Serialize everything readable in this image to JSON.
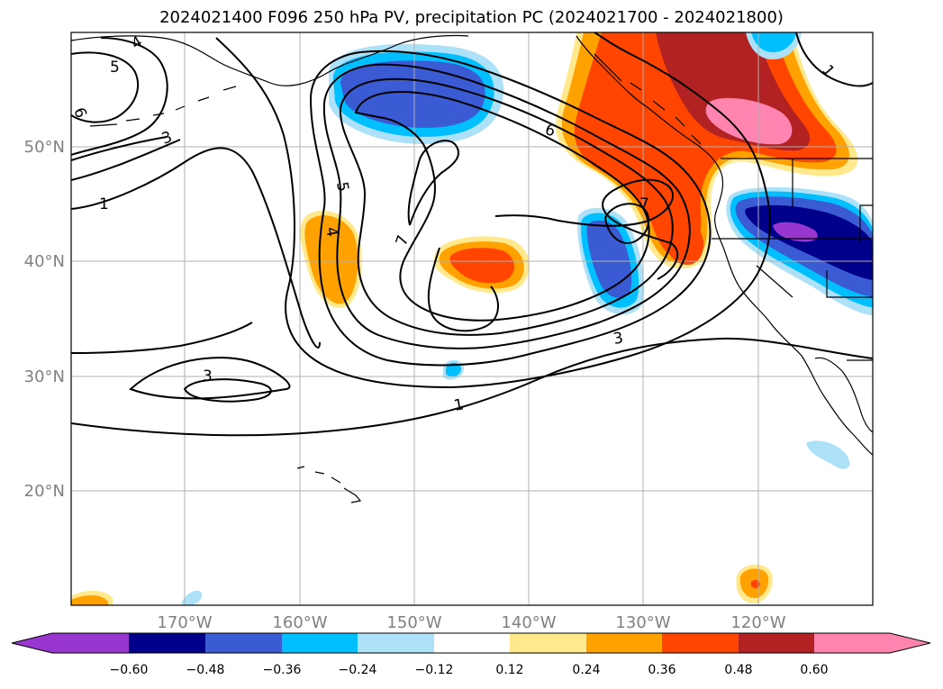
{
  "title": "2024021400 F096 250 hPa PV, precipitation PC (2024021700 - 2024021800)",
  "map": {
    "lat_labels": [
      "50°N",
      "40°N",
      "30°N",
      "20°N"
    ],
    "lon_labels": [
      "170°W",
      "160°W",
      "150°W",
      "140°W",
      "130°W",
      "120°W"
    ]
  },
  "pv_contours": {
    "levels": [
      1,
      2,
      3,
      4,
      5,
      6,
      7
    ],
    "labels": [
      "5",
      "4",
      "6",
      "3",
      "1",
      "5",
      "4",
      "7",
      "6",
      "7",
      "1",
      "3",
      "3",
      "1"
    ]
  },
  "colorbar": {
    "colors": [
      "#9a36d0",
      "#00008b",
      "#3a5bd3",
      "#00bfff",
      "#ade1f8",
      "#ffffff",
      "#ffe98c",
      "#ffa200",
      "#ff4500",
      "#b22222",
      "#ff85b0"
    ],
    "tick_labels": [
      "−0.60",
      "−0.48",
      "−0.36",
      "−0.24",
      "−0.12",
      "0.12",
      "0.24",
      "0.36",
      "0.48",
      "0.60"
    ],
    "extend": "both"
  }
}
